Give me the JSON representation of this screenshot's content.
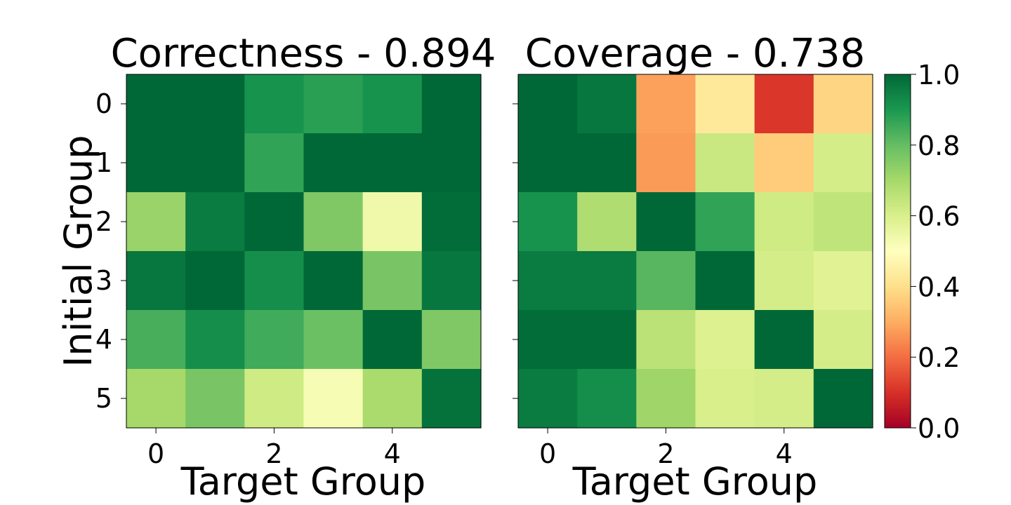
{
  "chart_data": [
    {
      "type": "heatmap",
      "title": "Correctness - 0.894",
      "xlabel": "Target Group",
      "ylabel": "Initial Group",
      "x_categories": [
        "0",
        "1",
        "2",
        "3",
        "4",
        "5"
      ],
      "y_categories": [
        "0",
        "1",
        "2",
        "3",
        "4",
        "5"
      ],
      "x_tick_labels": [
        "0",
        "2",
        "4"
      ],
      "y_tick_labels": [
        "0",
        "1",
        "2",
        "3",
        "4",
        "5"
      ],
      "values": [
        [
          1.0,
          1.0,
          0.91,
          0.88,
          0.91,
          1.0
        ],
        [
          1.0,
          1.0,
          0.87,
          1.0,
          1.0,
          1.0
        ],
        [
          0.72,
          0.96,
          1.0,
          0.76,
          0.54,
          0.99
        ],
        [
          0.97,
          1.0,
          0.92,
          1.0,
          0.77,
          0.97
        ],
        [
          0.84,
          0.92,
          0.85,
          0.79,
          1.0,
          0.76
        ],
        [
          0.7,
          0.77,
          0.62,
          0.52,
          0.69,
          0.98
        ]
      ]
    },
    {
      "type": "heatmap",
      "title": "Coverage - 0.738",
      "xlabel": "Target Group",
      "ylabel": "",
      "x_categories": [
        "0",
        "1",
        "2",
        "3",
        "4",
        "5"
      ],
      "y_categories": [
        "0",
        "1",
        "2",
        "3",
        "4",
        "5"
      ],
      "x_tick_labels": [
        "0",
        "2",
        "4"
      ],
      "y_tick_labels": [],
      "values": [
        [
          1.0,
          0.97,
          0.28,
          0.43,
          0.11,
          0.38
        ],
        [
          1.0,
          1.0,
          0.27,
          0.63,
          0.36,
          0.61
        ],
        [
          0.91,
          0.68,
          1.0,
          0.87,
          0.62,
          0.65
        ],
        [
          0.96,
          0.96,
          0.82,
          1.0,
          0.61,
          0.58
        ],
        [
          0.99,
          0.99,
          0.66,
          0.59,
          1.0,
          0.61
        ],
        [
          0.96,
          0.92,
          0.71,
          0.6,
          0.61,
          1.0
        ]
      ]
    }
  ],
  "colorbar": {
    "colormap": "RdYlGn",
    "vmin": 0.0,
    "vmax": 1.0,
    "tick_values": [
      0.0,
      0.2,
      0.4,
      0.6,
      0.8,
      1.0
    ],
    "tick_labels": [
      "0.0",
      "0.2",
      "0.4",
      "0.6",
      "0.8",
      "1.0"
    ]
  }
}
